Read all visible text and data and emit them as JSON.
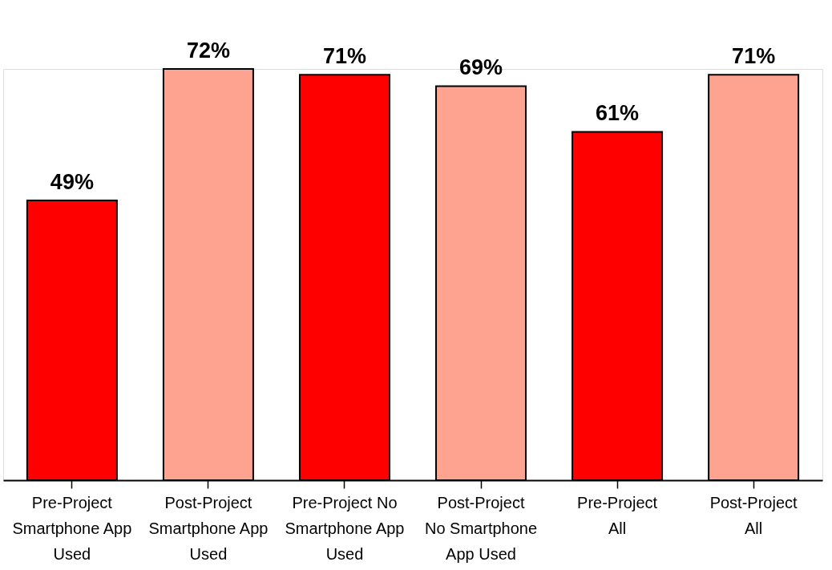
{
  "chart_data": {
    "type": "bar",
    "categories": [
      "Pre-Project Smartphone App Used",
      "Post-Project Smartphone App Used",
      "Pre-Project No Smartphone App Used",
      "Post-Project No Smartphone App Used",
      "Pre-Project All",
      "Post-Project All"
    ],
    "values": [
      49,
      72,
      71,
      69,
      61,
      71
    ],
    "colors": [
      "#ff0000",
      "#ffa391",
      "#ff0000",
      "#ffa391",
      "#ff0000",
      "#ffa391"
    ],
    "value_labels": [
      "49%",
      "72%",
      "71%",
      "69%",
      "61%",
      "71%"
    ]
  }
}
